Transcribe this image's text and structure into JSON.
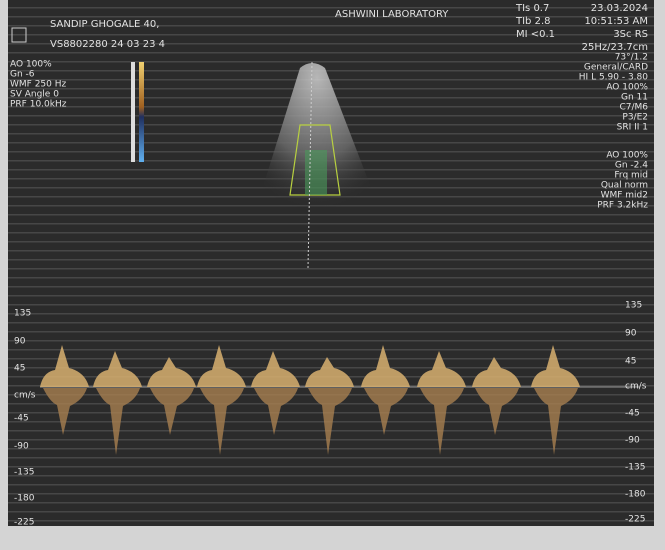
{
  "header": {
    "patient": "SANDIP GHOGALE 40,",
    "id": "VS8802280 24 03 23 4",
    "lab": "ASHWINI LABORATORY",
    "tis": "TIs 0.7",
    "tib": "TIb 2.8",
    "mi": "MI <0.1",
    "date": "23.03.2024",
    "time": "10:51:53 AM",
    "probe": "3Sc RS",
    "frame": "25Hz/23.7cm"
  },
  "left_params": [
    "AO 100%",
    "Gn -6",
    "WMF 250 Hz",
    "SV Angle 0",
    "PRF 10.0kHz"
  ],
  "right_params_2d": [
    "73°/1.2",
    "General/CARD",
    "HI L 5.90 - 3.80",
    "AO 100%",
    "Gn 11",
    "C7/M6",
    "P3/E2",
    "SRI II 1"
  ],
  "right_params_doppler": [
    "AO 100%",
    "Gn -2.4",
    "Frq mid",
    "Qual norm",
    "WMF mid2",
    "PRF 3.2kHz"
  ],
  "scale_left": [
    "135",
    "90",
    "45",
    "cm/s",
    "-45",
    "-90",
    "-135",
    "-180",
    "-225"
  ],
  "scale_right": [
    "135",
    "90",
    "45",
    "cm/s",
    "-45",
    "-90",
    "-135",
    "-180",
    "-225"
  ]
}
